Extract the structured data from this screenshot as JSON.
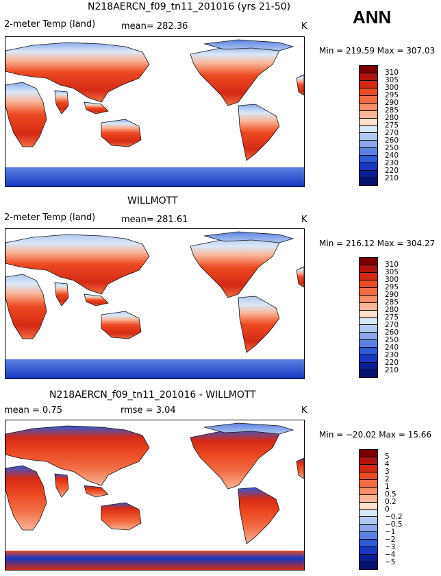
{
  "season": "ANN",
  "panels": [
    {
      "title": "N218AERCN_f09_tn11_201016 (yrs 21-50)",
      "left_label": "2-meter Temp (land)",
      "stat_label": "mean= 282.36",
      "units": "K",
      "minmax": "Min = 219.59 Max = 307.03",
      "levels": [
        "310",
        "305",
        "300",
        "295",
        "290",
        "285",
        "280",
        "275",
        "270",
        "260",
        "250",
        "240",
        "230",
        "220",
        "210"
      ],
      "colors": [
        "#7a0000",
        "#b01212",
        "#d42a14",
        "#ec4a22",
        "#f26d45",
        "#f6906b",
        "#f9b597",
        "#fde0cc",
        "#d9e8f8",
        "#b2c9f0",
        "#8aa8ea",
        "#5c82e2",
        "#2f5ad8",
        "#1638c2",
        "#0a1f98",
        "#061270"
      ],
      "map_style": "model"
    },
    {
      "title": "WILLMOTT",
      "left_label": "2-meter Temp (land)",
      "stat_label": "mean= 281.61",
      "units": "K",
      "minmax": "Min = 216.12 Max = 304.27",
      "levels": [
        "310",
        "305",
        "300",
        "295",
        "290",
        "285",
        "280",
        "275",
        "270",
        "260",
        "250",
        "240",
        "230",
        "220",
        "210"
      ],
      "colors": [
        "#7a0000",
        "#b01212",
        "#d42a14",
        "#ec4a22",
        "#f26d45",
        "#f6906b",
        "#f9b597",
        "#fde0cc",
        "#d9e8f8",
        "#b2c9f0",
        "#8aa8ea",
        "#5c82e2",
        "#2f5ad8",
        "#1638c2",
        "#0a1f98",
        "#061270"
      ],
      "map_style": "obs"
    },
    {
      "title": "N218AERCN_f09_tn11_201016 - WILLMOTT",
      "left_label": "mean =    0.75",
      "stat_label": "rmse =    3.04",
      "units": "K",
      "minmax": "Min = −20.02 Max =  15.66",
      "levels": [
        "5",
        "4",
        "3",
        "2",
        "1",
        "0.5",
        "0.2",
        "0",
        "−0.2",
        "−0.5",
        "−1",
        "−2",
        "−3",
        "−4",
        "−5"
      ],
      "colors": [
        "#7a0000",
        "#b01212",
        "#d42a14",
        "#ec4a22",
        "#f26d45",
        "#f6906b",
        "#f9b597",
        "#fde0cc",
        "#d9e8f8",
        "#b2c9f0",
        "#8aa8ea",
        "#5c82e2",
        "#2f5ad8",
        "#1638c2",
        "#0a1f98",
        "#061270"
      ],
      "map_style": "diff"
    }
  ]
}
